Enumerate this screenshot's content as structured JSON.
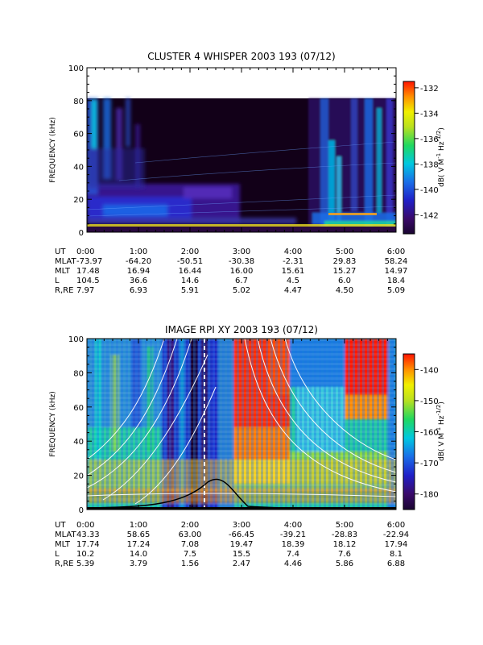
{
  "chart_data": [
    {
      "type": "heatmap",
      "title": "CLUSTER 4 WHISPER 2003 193 (07/12)",
      "ylabel": "FREQUENCY (kHz)",
      "ylim": [
        0,
        100
      ],
      "data_top_khz": 80,
      "y_ticks": [
        "0",
        "20",
        "40",
        "60",
        "80",
        "100"
      ],
      "x_ticks": [
        "0:00",
        "1:00",
        "2:00",
        "3:00",
        "4:00",
        "5:00",
        "6:00"
      ],
      "xlim_hours": [
        0,
        6
      ],
      "colorbar": {
        "label": "dB( V M⁻¹ Hz⁻¹ᐟ²)",
        "label_parts": [
          "dB( V M",
          "-1",
          " Hz",
          "-1/2",
          ")"
        ],
        "range": [
          -143.5,
          -131.5
        ],
        "ticks": [
          "-132",
          "-134",
          "-136",
          "-138",
          "-140",
          "-142"
        ]
      },
      "ephemeris": [
        {
          "name": "UT",
          "values": [
            "0:00",
            "1:00",
            "2:00",
            "3:00",
            "4:00",
            "5:00",
            "6:00"
          ]
        },
        {
          "name": "MLAT",
          "values": [
            "-73.97",
            "-64.20",
            "-50.51",
            "-30.38",
            "-2.31",
            "29.83",
            "58.24"
          ]
        },
        {
          "name": "MLT",
          "values": [
            "17.48",
            "16.94",
            "16.44",
            "16.00",
            "15.61",
            "15.27",
            "14.97"
          ]
        },
        {
          "name": "L",
          "values": [
            "104.5",
            "36.6",
            "14.6",
            "6.7",
            "4.5",
            "6.0",
            "18.4"
          ]
        },
        {
          "name": "R,RE",
          "values": [
            "7.97",
            "6.93",
            "5.91",
            "5.02",
            "4.47",
            "4.50",
            "5.09"
          ]
        }
      ],
      "features": [
        {
          "kind": "broadband noise",
          "t_start": 0.0,
          "t_end": 0.9,
          "f_low": 20,
          "f_high": 80
        },
        {
          "kind": "continuum band",
          "t_start": 0.0,
          "t_end": 2.9,
          "f_low": 8,
          "f_high": 30
        },
        {
          "kind": "broadband noise",
          "t_start": 4.3,
          "t_end": 6.0,
          "f_low": 0,
          "f_high": 80
        }
      ]
    },
    {
      "type": "heatmap",
      "title": "IMAGE RPI XY 2003 193 (07/12)",
      "ylabel": "FREQUENCY (kHz)",
      "ylim": [
        0,
        100
      ],
      "y_ticks": [
        "0",
        "20",
        "40",
        "60",
        "80",
        "100"
      ],
      "x_ticks": [
        "0:00",
        "1:00",
        "2:00",
        "3:00",
        "4:00",
        "5:00",
        "6:00"
      ],
      "xlim_hours": [
        0,
        6
      ],
      "colorbar": {
        "label": "dB( V M⁻¹ Hz⁻¹ᐟ²)",
        "label_parts": [
          "dB( V M",
          "-1",
          " Hz",
          "-1/2",
          ")"
        ],
        "range": [
          -185,
          -135
        ],
        "ticks": [
          "-140",
          "-150",
          "-160",
          "-170",
          "-180"
        ]
      },
      "ephemeris": [
        {
          "name": "UT",
          "values": [
            "0:00",
            "1:00",
            "2:00",
            "3:00",
            "4:00",
            "5:00",
            "6:00"
          ]
        },
        {
          "name": "MLAT",
          "values": [
            "43.33",
            "58.65",
            "63.00",
            "-66.45",
            "-39.21",
            "-28.83",
            "-22.94"
          ]
        },
        {
          "name": "MLT",
          "values": [
            "17.74",
            "17.24",
            "7.08",
            "19.47",
            "18.39",
            "18.12",
            "17.94"
          ]
        },
        {
          "name": "L",
          "values": [
            "10.2",
            "14.0",
            "7.5",
            "15.5",
            "7.4",
            "7.6",
            "8.1"
          ]
        },
        {
          "name": "R,RE",
          "values": [
            "5.39",
            "3.79",
            "1.56",
            "2.47",
            "4.46",
            "5.86",
            "6.88"
          ]
        }
      ],
      "features": [
        {
          "kind": "intense emission",
          "t_start": 2.85,
          "t_end": 3.95,
          "f_low": 30,
          "f_high": 100
        },
        {
          "kind": "intense emission",
          "t_start": 5.0,
          "t_end": 5.85,
          "f_low": 55,
          "f_high": 100
        },
        {
          "kind": "low-signal column",
          "t_start": 1.45,
          "t_end": 2.55,
          "f_low": 0,
          "f_high": 100
        }
      ]
    }
  ],
  "colors": {
    "spectrum": [
      "#1a0530",
      "#3a0a6a",
      "#2020c8",
      "#1a6ee8",
      "#00c8e0",
      "#20d860",
      "#b8e020",
      "#f0f000",
      "#ff9000",
      "#ff1400"
    ],
    "overlay_curves": "#ffffff",
    "overlay_fp": "#000000"
  }
}
